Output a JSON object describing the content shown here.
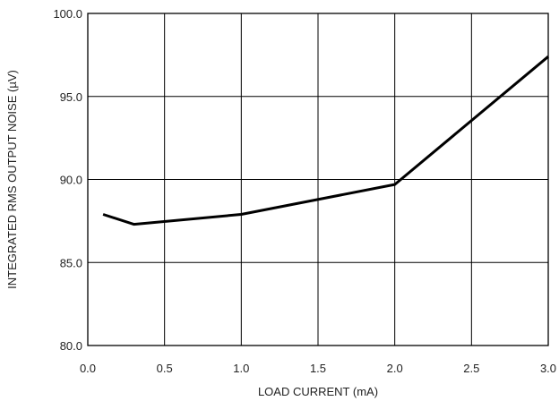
{
  "chart_data": {
    "type": "line",
    "title": "",
    "xlabel": "LOAD CURRENT (mA)",
    "ylabel": "INTEGRATED RMS OUTPUT NOISE  (µV)",
    "xlim": [
      0.0,
      3.0
    ],
    "ylim": [
      80.0,
      100.0
    ],
    "x_ticks": [
      "0.0",
      "0.5",
      "1.0",
      "1.5",
      "2.0",
      "2.5",
      "3.0"
    ],
    "y_ticks": [
      "80.0",
      "85.0",
      "90.0",
      "95.0",
      "100.0"
    ],
    "grid": true,
    "series": [
      {
        "x": [
          0.1,
          0.3,
          1.0,
          2.0,
          3.0
        ],
        "y": [
          87.9,
          87.3,
          87.9,
          89.7,
          97.4
        ]
      }
    ],
    "colors": {
      "line": "#000000",
      "grid": "#000000",
      "frame": "#000000"
    }
  }
}
